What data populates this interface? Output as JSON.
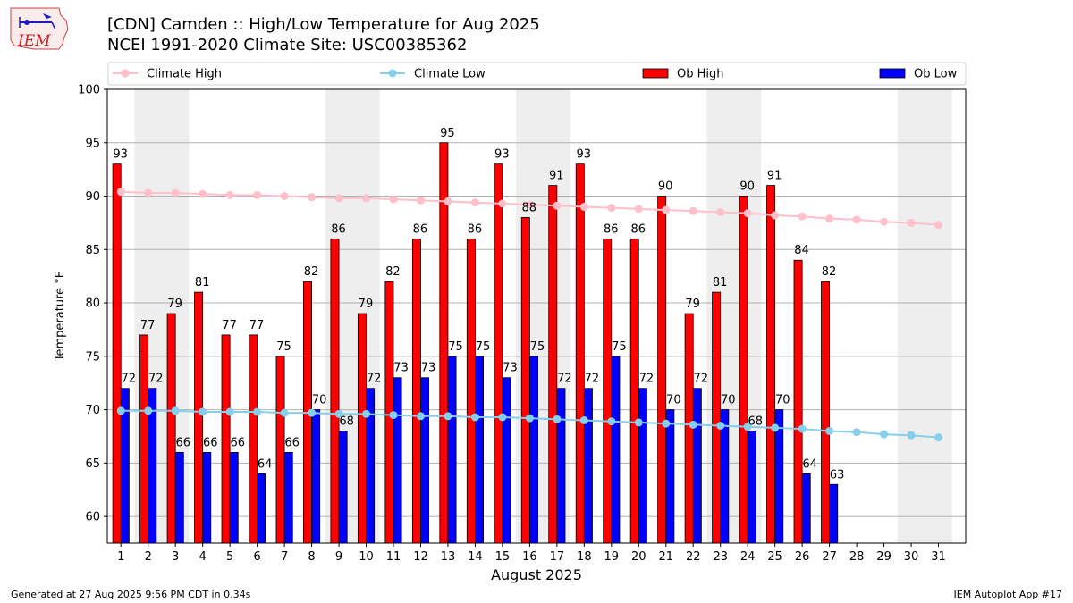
{
  "header": {
    "title_line1": "[CDN] Camden :: High/Low Temperature for Aug 2025",
    "title_line2": "NCEI 1991-2020 Climate Site: USC00385362",
    "logo_text": "IEM"
  },
  "footer": {
    "generated": "Generated at 27 Aug 2025 9:56 PM CDT in 0.34s",
    "app": "IEM Autoplot App #17"
  },
  "colors": {
    "ob_high": "#ff0000",
    "ob_low": "#0000ff",
    "climate_high": "#ffc0cb",
    "climate_low": "#87ceeb",
    "weekend_band": "#eeeeee",
    "grid": "#b0b0b0"
  },
  "chart_data": {
    "type": "bar",
    "xlabel": "August 2025",
    "ylabel": "Temperature °F",
    "ylim": [
      57.5,
      100
    ],
    "yticks": [
      60,
      65,
      70,
      75,
      80,
      85,
      90,
      95,
      100
    ],
    "grid": "horizontal",
    "legend_placement": "top",
    "days": [
      1,
      2,
      3,
      4,
      5,
      6,
      7,
      8,
      9,
      10,
      11,
      12,
      13,
      14,
      15,
      16,
      17,
      18,
      19,
      20,
      21,
      22,
      23,
      24,
      25,
      26,
      27,
      28,
      29,
      30,
      31
    ],
    "weekend_bands": [
      [
        2,
        3
      ],
      [
        9,
        10
      ],
      [
        16,
        17
      ],
      [
        23,
        24
      ],
      [
        30,
        31
      ]
    ],
    "series": [
      {
        "name": "Climate High",
        "kind": "line",
        "values": [
          90.4,
          90.3,
          90.3,
          90.2,
          90.1,
          90.1,
          90.0,
          89.9,
          89.8,
          89.8,
          89.7,
          89.6,
          89.5,
          89.4,
          89.3,
          89.2,
          89.1,
          89.0,
          88.9,
          88.8,
          88.7,
          88.6,
          88.5,
          88.4,
          88.2,
          88.1,
          87.9,
          87.8,
          87.6,
          87.5,
          87.3
        ]
      },
      {
        "name": "Climate Low",
        "kind": "line",
        "values": [
          69.9,
          69.9,
          69.9,
          69.8,
          69.8,
          69.8,
          69.7,
          69.7,
          69.6,
          69.6,
          69.5,
          69.4,
          69.4,
          69.3,
          69.3,
          69.2,
          69.1,
          69.0,
          68.9,
          68.8,
          68.7,
          68.6,
          68.5,
          68.4,
          68.3,
          68.2,
          68.0,
          67.9,
          67.7,
          67.6,
          67.4
        ]
      },
      {
        "name": "Ob High",
        "kind": "bar",
        "values": [
          93,
          77,
          79,
          81,
          77,
          77,
          75,
          82,
          86,
          79,
          82,
          86,
          95,
          86,
          93,
          88,
          91,
          93,
          86,
          86,
          90,
          79,
          81,
          90,
          91,
          84,
          82,
          null,
          null,
          null,
          null
        ]
      },
      {
        "name": "Ob Low",
        "kind": "bar",
        "values": [
          72,
          72,
          66,
          66,
          66,
          64,
          66,
          70,
          68,
          72,
          73,
          73,
          75,
          75,
          73,
          75,
          72,
          72,
          75,
          72,
          70,
          72,
          70,
          68,
          70,
          64,
          63,
          null,
          null,
          null,
          null
        ]
      }
    ]
  }
}
